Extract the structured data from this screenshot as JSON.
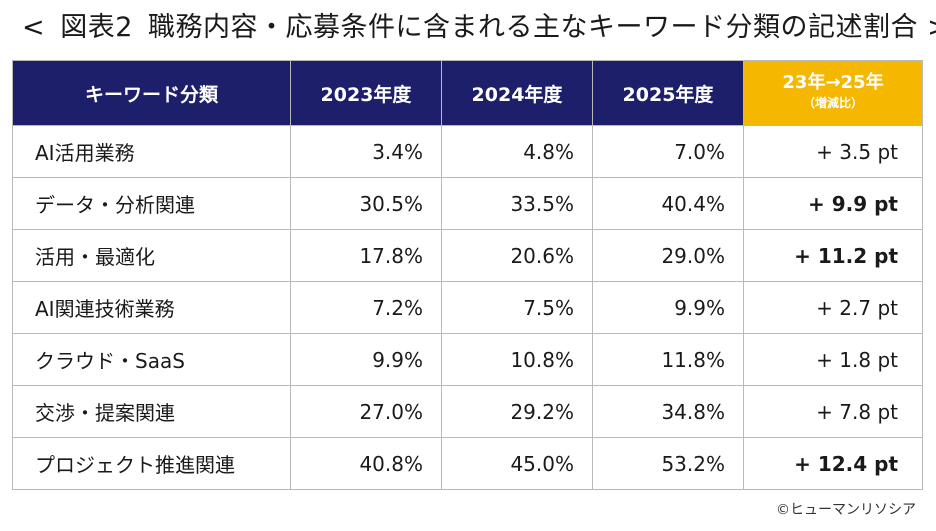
{
  "title": {
    "bracket_open": "<",
    "figure_no": "図表2",
    "text": "職務内容・応募条件に含まれる主なキーワード分類の記述割合",
    "bracket_close": ">"
  },
  "chart_data": {
    "type": "table",
    "columns": [
      "キーワード分類",
      "2023年度",
      "2024年度",
      "2025年度"
    ],
    "change_column": {
      "label": "23年→25年",
      "sublabel": "（増減比）"
    },
    "rows": [
      {
        "category": "AI活用業務",
        "y2023": "3.4%",
        "y2024": "4.8%",
        "y2025": "7.0%",
        "change": "+ 3.5 pt",
        "bold": false
      },
      {
        "category": "データ・分析関連",
        "y2023": "30.5%",
        "y2024": "33.5%",
        "y2025": "40.4%",
        "change": "+ 9.9 pt",
        "bold": true
      },
      {
        "category": "活用・最適化",
        "y2023": "17.8%",
        "y2024": "20.6%",
        "y2025": "29.0%",
        "change": "+ 11.2 pt",
        "bold": true
      },
      {
        "category": "AI関連技術業務",
        "y2023": "7.2%",
        "y2024": "7.5%",
        "y2025": "9.9%",
        "change": "+ 2.7 pt",
        "bold": false
      },
      {
        "category": "クラウド・SaaS",
        "y2023": "9.9%",
        "y2024": "10.8%",
        "y2025": "11.8%",
        "change": "+ 1.8 pt",
        "bold": false
      },
      {
        "category": "交渉・提案関連",
        "y2023": "27.0%",
        "y2024": "29.2%",
        "y2025": "34.8%",
        "change": "+ 7.8 pt",
        "bold": false
      },
      {
        "category": "プロジェクト推進関連",
        "y2023": "40.8%",
        "y2024": "45.0%",
        "y2025": "53.2%",
        "change": "+ 12.4 pt",
        "bold": true
      }
    ]
  },
  "credit": "©ヒューマンリソシア",
  "colors": {
    "header_bg": "#1d1f6b",
    "change_header_bg": "#f6b700",
    "border": "#b9b9b9",
    "text": "#1a1a1a"
  }
}
